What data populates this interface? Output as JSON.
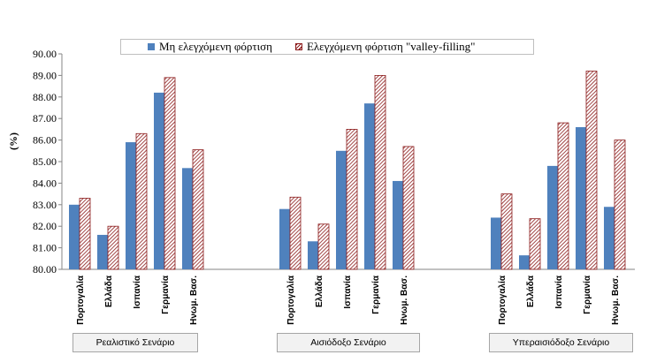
{
  "chart_data": {
    "type": "bar",
    "ylabel": "(%)",
    "ylim": [
      80,
      90
    ],
    "yticks": [
      "80.00",
      "81.00",
      "82.00",
      "83.00",
      "84.00",
      "85.00",
      "86.00",
      "87.00",
      "88.00",
      "89.00",
      "90.00"
    ],
    "grid": false,
    "legend_position": "top",
    "colors": {
      "uncontrolled": "#4f81bd",
      "controlled": "#8b1a1a"
    },
    "series": [
      {
        "name": "Μη ελεγχόμενη φόρτιση",
        "style": "solid"
      },
      {
        "name": "Ελεγχόμενη φόρτιση \"valley-filling\"",
        "style": "hatched"
      }
    ],
    "groups": [
      {
        "name": "Ρεαλιστικό Σενάριο",
        "categories": [
          "Πορτογαλία",
          "Ελλάδα",
          "Ισπανία",
          "Γερμανία",
          "Ηνωμ. Βασ."
        ],
        "values": [
          [
            83.0,
            81.6,
            85.9,
            88.2,
            84.7
          ],
          [
            83.3,
            82.0,
            86.3,
            88.9,
            85.55
          ]
        ]
      },
      {
        "name": "Αισιόδοξο Σενάριο",
        "categories": [
          "Πορτογαλία",
          "Ελλάδα",
          "Ισπανία",
          "Γερμανία",
          "Ηνωμ. Βασ."
        ],
        "values": [
          [
            82.8,
            81.3,
            85.5,
            87.7,
            84.1
          ],
          [
            83.35,
            82.1,
            86.5,
            89.0,
            85.7
          ]
        ]
      },
      {
        "name": "Υπεραισιόδοξο Σενάριο",
        "categories": [
          "Πορτογαλία",
          "Ελλάδα",
          "Ισπανία",
          "Γερμανία",
          "Ηνωμ. Βασ."
        ],
        "values": [
          [
            82.4,
            80.65,
            84.8,
            86.6,
            82.9
          ],
          [
            83.5,
            82.35,
            86.8,
            89.2,
            86.0
          ]
        ]
      }
    ]
  }
}
